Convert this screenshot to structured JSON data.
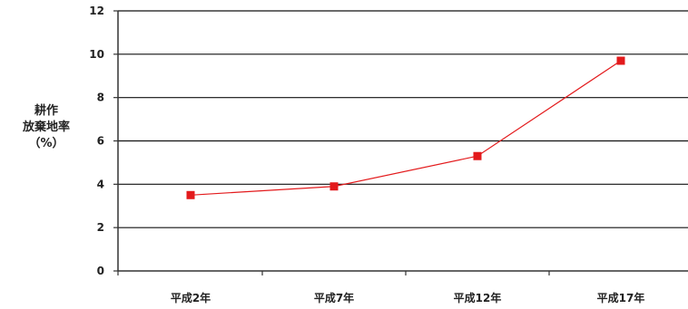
{
  "chart_data": {
    "type": "line",
    "ylabel_lines": [
      "耕作",
      "放棄地率",
      "（%）"
    ],
    "categories": [
      "平成2年",
      "平成7年",
      "平成12年",
      "平成17年"
    ],
    "series": [
      {
        "values": [
          3.5,
          3.9,
          5.3,
          9.7
        ],
        "color": "#e31a1c"
      }
    ],
    "ylim": [
      0,
      12
    ],
    "yticks": [
      0,
      2,
      4,
      6,
      8,
      10,
      12
    ],
    "grid": true,
    "legend": "none",
    "colors": {
      "grid": "#111111",
      "axis": "#333333",
      "series": "#e31a1c"
    }
  }
}
